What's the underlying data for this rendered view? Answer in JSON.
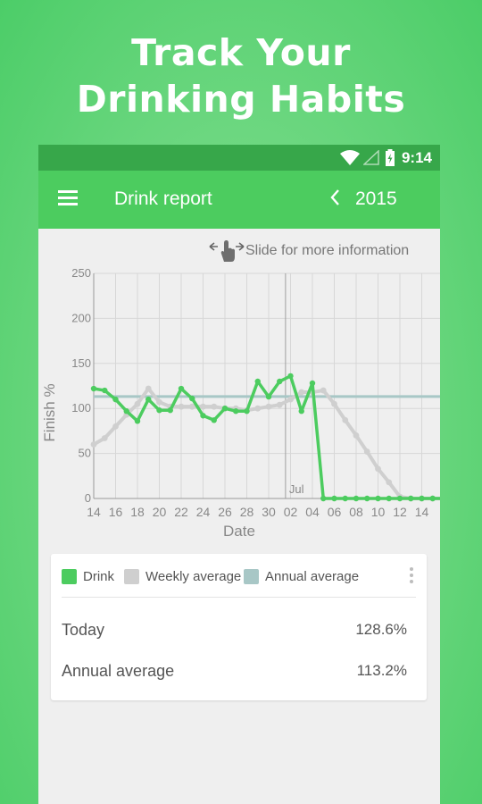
{
  "promo": {
    "line1": "Track Your",
    "line2": "Drinking Habits"
  },
  "status_bar": {
    "time": "9:14",
    "icons": [
      "wifi-icon",
      "signal-icon",
      "battery-charging-icon"
    ]
  },
  "app_bar": {
    "menu_icon": "hamburger-menu-icon",
    "title": "Drink report",
    "prev_icon": "chevron-left-icon",
    "year": "2015"
  },
  "hint": {
    "icon": "swipe-hand-icon",
    "text": "Slide for more information"
  },
  "chart_data": {
    "type": "line",
    "xlabel": "Date",
    "ylabel": "Finish %",
    "ylim": [
      0,
      250
    ],
    "y_ticks": [
      0,
      50,
      100,
      150,
      200,
      250
    ],
    "x_tick_labels": [
      "14",
      "16",
      "18",
      "20",
      "22",
      "24",
      "26",
      "28",
      "30",
      "02",
      "04",
      "06",
      "08",
      "10",
      "12",
      "14"
    ],
    "month_marker": {
      "label": "Jul",
      "after_index": 17
    },
    "grid": true,
    "series": [
      {
        "name": "Drink",
        "color": "#4ccc5f",
        "values": [
          122,
          120,
          110,
          97,
          86,
          110,
          98,
          98,
          122,
          111,
          92,
          87,
          100,
          97,
          97,
          130,
          113,
          130,
          136,
          97,
          128,
          0,
          0,
          0,
          0,
          0,
          0,
          0,
          0,
          0,
          0,
          0,
          0,
          0,
          0,
          0
        ]
      },
      {
        "name": "Weekly average",
        "color": "#cfcfcf",
        "values": [
          60,
          67,
          80,
          93,
          105,
          122,
          107,
          102,
          102,
          102,
          102,
          102,
          100,
          100,
          98,
          100,
          102,
          104,
          110,
          118,
          118,
          120,
          105,
          87,
          70,
          52,
          33,
          18,
          2,
          0,
          0,
          0,
          0,
          0,
          0,
          0
        ]
      },
      {
        "name": "Annual average",
        "color": "#a8c7c6",
        "values": [
          113.2,
          113.2,
          113.2,
          113.2,
          113.2,
          113.2,
          113.2,
          113.2,
          113.2,
          113.2,
          113.2,
          113.2,
          113.2,
          113.2,
          113.2,
          113.2,
          113.2,
          113.2,
          113.2,
          113.2,
          113.2,
          113.2,
          113.2,
          113.2,
          113.2,
          113.2,
          113.2,
          113.2,
          113.2,
          113.2,
          113.2,
          113.2,
          113.2,
          113.2,
          113.2,
          113.2
        ]
      }
    ]
  },
  "legend": {
    "items": [
      {
        "label": "Drink",
        "color": "#4ccc5f"
      },
      {
        "label": "Weekly average",
        "color": "#cfcfcf"
      },
      {
        "label": "Annual average",
        "color": "#a8c7c6"
      }
    ],
    "more_icon": "more-vertical-icon"
  },
  "summary": {
    "today_label": "Today",
    "today_value": "128.6%",
    "annual_label": "Annual average",
    "annual_value": "113.2%"
  }
}
